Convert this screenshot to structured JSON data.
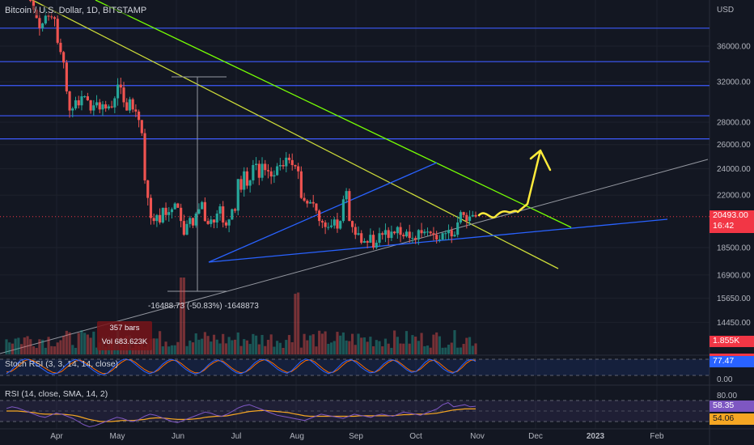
{
  "chart_data": {
    "type": "candlestick",
    "title": "Bitcoin / U.S. Dollar, 1D, BITSTAMP",
    "currency_label": "USD",
    "price_ticks": [
      36000,
      32000,
      28000,
      26000,
      24000,
      22000,
      18500,
      16900,
      15650,
      14450
    ],
    "price_tick_labels": [
      "36000.00",
      "32000.00",
      "28000.00",
      "26000.00",
      "24000.00",
      "22000.00",
      "18500.00",
      "16900.00",
      "15650.00",
      "14450.00"
    ],
    "x_labels": [
      "Apr",
      "May",
      "Jun",
      "Jul",
      "Aug",
      "Sep",
      "Oct",
      "Nov",
      "Dec",
      "2023",
      "Feb"
    ],
    "last_price": "20493.00",
    "countdown": "16:42",
    "volume_last": "1.855K",
    "horizontal_levels": [
      38200,
      34200,
      31600,
      28600,
      26500
    ],
    "closes": [
      45200,
      46800,
      45800,
      46100,
      47100,
      47000,
      44500,
      42800,
      41800,
      40600,
      39500,
      38200,
      38800,
      39800,
      39700,
      39600,
      39400,
      36400,
      35300,
      34100,
      31000,
      29100,
      29300,
      30100,
      29600,
      30500,
      30500,
      30100,
      29100,
      29600,
      29900,
      29200,
      29700,
      29300,
      29500,
      29400,
      30300,
      31700,
      31400,
      29900,
      29100,
      30200,
      29200,
      29000,
      28200,
      27000,
      23100,
      21800,
      20400,
      20200,
      20600,
      20100,
      21100,
      20600,
      20800,
      21000,
      21400,
      21100,
      20200,
      19300,
      20000,
      20400,
      19900,
      20700,
      21000,
      21500,
      20200,
      20000,
      20300,
      20100,
      20700,
      21200,
      20100,
      19900,
      20300,
      21000,
      20900,
      23200,
      22400,
      23800,
      22700,
      23100,
      24300,
      24400,
      23300,
      24400,
      23900,
      23800,
      23400,
      23500,
      24200,
      24300,
      24200,
      24900,
      24700,
      24300,
      24200,
      23800,
      21800,
      21600,
      21400,
      21500,
      21400,
      20900,
      20200,
      20100,
      19800,
      19800,
      19900,
      20300,
      19700,
      20200,
      21700,
      22300,
      20200,
      19800,
      19300,
      19400,
      18800,
      18900,
      18800,
      19300,
      18500,
      18800,
      19400,
      19300,
      19600,
      19100,
      19500,
      19400,
      19800,
      19300,
      19200,
      19500,
      19100,
      19100,
      19000,
      19600,
      19400,
      19500,
      19500,
      19400,
      19300,
      19000,
      19000,
      19400,
      19400,
      19600,
      19200,
      19300,
      20100,
      20800,
      20600,
      20200,
      20500,
      20600,
      20500
    ],
    "annotations": [
      {
        "type": "measure",
        "bars": "357 bars",
        "volume": "Vol 683.623K",
        "change": "-16488.73 (-50.83%) -1648873"
      }
    ],
    "indicators": {
      "stoch_rsi": {
        "label": "Stoch RSI (3, 3, 14, 14, close)",
        "value_k": "77.47",
        "axis_label": "0.00",
        "k": [
          20,
          35,
          60,
          82,
          90,
          85,
          70,
          55,
          40,
          25,
          18,
          22,
          40,
          62,
          78,
          88,
          80,
          66,
          50,
          34,
          20,
          14,
          24,
          45,
          68,
          84,
          90,
          82,
          64,
          46,
          30,
          20,
          26,
          44,
          66,
          82,
          88,
          78,
          58,
          40,
          26,
          18,
          24,
          42,
          64,
          80,
          86,
          74,
          56,
          38,
          24,
          20,
          30,
          50,
          72,
          86,
          88,
          76,
          58,
          40,
          28,
          22,
          34,
          56,
          78,
          90,
          84,
          66,
          46,
          30,
          20,
          28,
          48,
          70,
          84,
          86,
          72,
          52,
          36,
          24,
          26,
          44,
          66,
          82,
          86,
          74,
          56,
          38,
          26,
          30,
          50,
          74,
          88,
          82,
          62,
          42,
          28,
          22,
          34,
          58,
          80,
          88,
          78
        ],
        "d": [
          28,
          30,
          45,
          65,
          82,
          88,
          80,
          68,
          52,
          38,
          26,
          22,
          30,
          48,
          66,
          80,
          84,
          74,
          60,
          44,
          30,
          20,
          22,
          36,
          56,
          74,
          86,
          86,
          74,
          56,
          40,
          28,
          26,
          36,
          56,
          74,
          84,
          82,
          68,
          50,
          34,
          24,
          24,
          36,
          56,
          72,
          82,
          80,
          64,
          46,
          32,
          24,
          28,
          42,
          62,
          78,
          86,
          82,
          68,
          50,
          36,
          26,
          30,
          46,
          66,
          82,
          86,
          76,
          58,
          40,
          26,
          26,
          38,
          58,
          76,
          84,
          80,
          64,
          46,
          32,
          26,
          36,
          56,
          74,
          84,
          80,
          64,
          46,
          32,
          30,
          42,
          62,
          80,
          84,
          72,
          54,
          36,
          26,
          30,
          48,
          70,
          84,
          84
        ]
      },
      "rsi": {
        "label": "RSI (14, close, SMA, 14, 2)",
        "value": "58.35",
        "ma_value": "54.06",
        "axis_top": "80.00",
        "values": [
          55,
          58,
          56,
          52,
          48,
          44,
          40,
          38,
          42,
          46,
          44,
          40,
          36,
          30,
          24,
          20,
          22,
          26,
          30,
          34,
          38,
          36,
          32,
          30,
          34,
          40,
          44,
          42,
          38,
          34,
          30,
          28,
          32,
          36,
          40,
          44,
          48,
          46,
          42,
          40,
          44,
          50,
          56,
          60,
          62,
          58,
          54,
          50,
          46,
          42,
          40,
          38,
          36,
          34,
          32,
          36,
          40,
          44,
          42,
          40,
          38,
          36,
          40,
          44,
          42,
          40,
          38,
          42,
          44,
          42,
          40,
          44,
          48,
          46,
          44,
          42,
          46,
          50,
          54,
          62,
          66,
          58,
          60,
          62,
          58,
          59
        ],
        "ma": [
          50,
          50,
          50,
          49,
          48,
          47,
          45,
          44,
          44,
          44,
          44,
          43,
          42,
          40,
          37,
          34,
          32,
          30,
          30,
          30,
          31,
          32,
          32,
          32,
          33,
          34,
          36,
          37,
          37,
          36,
          35,
          34,
          34,
          34,
          35,
          36,
          38,
          39,
          40,
          40,
          41,
          43,
          45,
          47,
          49,
          50,
          51,
          51,
          50,
          49,
          48,
          47,
          45,
          43,
          41,
          40,
          40,
          40,
          40,
          40,
          40,
          40,
          40,
          40,
          41,
          41,
          41,
          41,
          41,
          41,
          41,
          42,
          43,
          43,
          44,
          44,
          44,
          45,
          46,
          48,
          50,
          52,
          53,
          54,
          54,
          54
        ]
      }
    },
    "y_axis_extra": [
      "1.855K",
      "77.47",
      "0.00",
      "80.00",
      "58.35",
      "54.06"
    ]
  }
}
